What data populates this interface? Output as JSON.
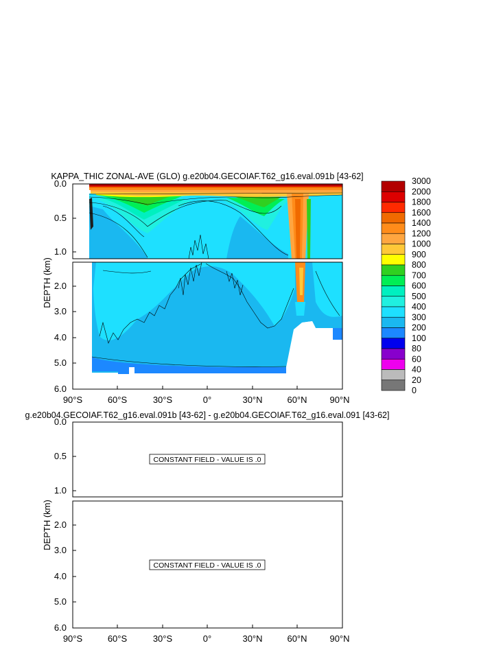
{
  "panel1": {
    "title": "KAPPA_THIC ZONAL-AVE (GLO) g.e20b04.GECOIAF.T62_g16.eval.091b [43-62]"
  },
  "panel2": {
    "title": "g.e20b04.GECOIAF.T62_g16.eval.091b [43-62] - g.e20b04.GECOIAF.T62_g16.eval.091 [43-62]",
    "message_upper": "CONSTANT FIELD - VALUE IS .0",
    "message_lower": "CONSTANT FIELD - VALUE IS .0"
  },
  "axes": {
    "ylabel": "DEPTH (km)",
    "xticks": [
      "90°S",
      "60°S",
      "30°S",
      "0°",
      "30°N",
      "60°N",
      "90°N"
    ],
    "yticks_upper": [
      "0.0",
      "0.5",
      "1.0"
    ],
    "yticks_lower": [
      "2.0",
      "3.0",
      "4.0",
      "5.0",
      "6.0"
    ]
  },
  "colorbar": {
    "levels": [
      "3000",
      "2000",
      "1800",
      "1600",
      "1400",
      "1200",
      "1000",
      "900",
      "800",
      "700",
      "600",
      "500",
      "400",
      "300",
      "200",
      "100",
      "80",
      "60",
      "40",
      "20",
      "0"
    ],
    "colors": [
      "#b30000",
      "#dd0000",
      "#ff2a00",
      "#f06a00",
      "#ff8c1a",
      "#ffa640",
      "#ffc838",
      "#ffff00",
      "#30d020",
      "#00ee55",
      "#00f0c0",
      "#20f0e0",
      "#1ee0ff",
      "#1ab8f0",
      "#1c88ff",
      "#0000ee",
      "#8800cc",
      "#ee00ee",
      "#bbbbbb",
      "#777777"
    ]
  },
  "chart_data": {
    "type": "heatmap",
    "title": "KAPPA_THIC ZONAL-AVE (GLO) g.e20b04.GECOIAF.T62_g16.eval.091b [43-62]",
    "xlabel": "",
    "ylabel": "DEPTH (km)",
    "xlim": [
      -90,
      90
    ],
    "ylim": [
      6.0,
      0.0
    ],
    "x_ticks": [
      -90,
      -60,
      -30,
      0,
      30,
      60,
      90
    ],
    "contour_levels": [
      0,
      20,
      40,
      60,
      80,
      100,
      200,
      300,
      400,
      500,
      600,
      700,
      800,
      900,
      1000,
      1200,
      1400,
      1600,
      1800,
      2000,
      3000
    ],
    "approx_profile": [
      {
        "lat": -75,
        "surface": 3000,
        "at_0_5km": 300
      },
      {
        "lat": -60,
        "surface": 3000,
        "at_0_5km": 600
      },
      {
        "lat": -40,
        "surface": 3000,
        "at_0_5km": 700
      },
      {
        "lat": 0,
        "surface": 2000,
        "at_0_5km": 300
      },
      {
        "lat": 30,
        "surface": 3000,
        "at_0_5km": 600
      },
      {
        "lat": 60,
        "surface": 1600,
        "at_0_5km": 1400
      },
      {
        "lat": 80,
        "surface": 2000,
        "at_0_5km": 300
      }
    ]
  }
}
